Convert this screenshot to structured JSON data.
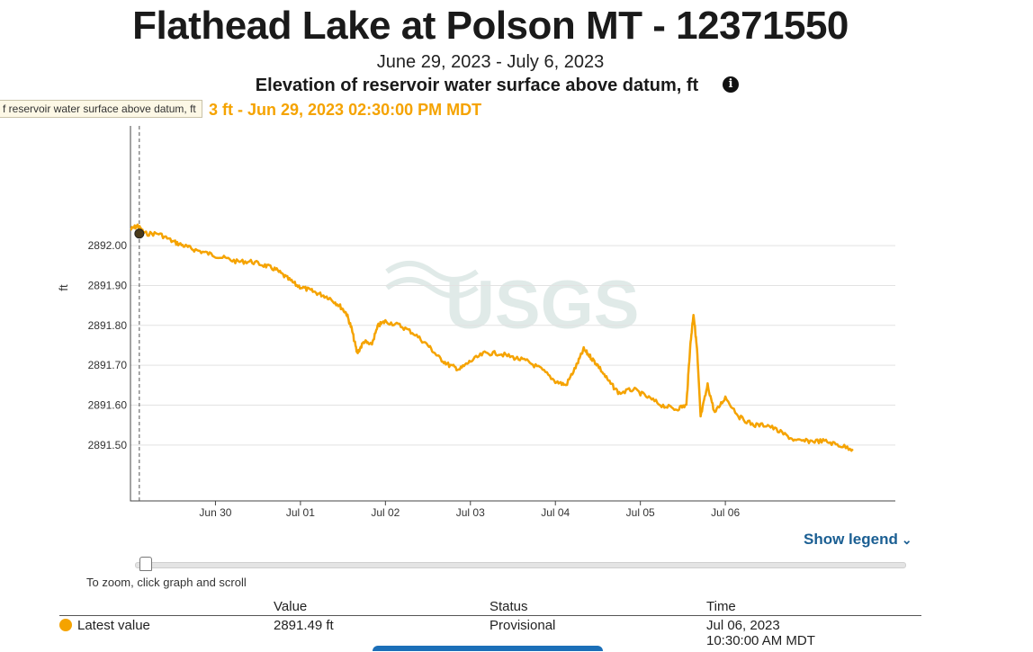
{
  "header": {
    "title": "Flathead Lake at Polson MT - 12371550",
    "date_range": "June 29, 2023 - July 6, 2023",
    "parameter": "Elevation of reservoir water surface above datum, ft",
    "info_icon": "info-icon"
  },
  "tooltip": {
    "text": "f reservoir water surface above datum, ft",
    "hover_value": "3 ft - Jun 29, 2023 02:30:00 PM MDT"
  },
  "chart_data": {
    "type": "line",
    "title": "Flathead Lake at Polson MT - 12371550",
    "ylabel": "ft",
    "xlabel": "",
    "ylim": [
      2891.36,
      2892.3
    ],
    "xlim_days_label": "Jun 29 12:00 - Jul 06 21:00",
    "grid": "horizontal",
    "y_ticks": [
      "2892.00",
      "2891.90",
      "2891.80",
      "2891.70",
      "2891.60",
      "2891.50"
    ],
    "x_ticks": [
      "Jun 30",
      "Jul 01",
      "Jul 02",
      "Jul 03",
      "Jul 04",
      "Jul 05",
      "Jul 06"
    ],
    "line_color": "#f5a300",
    "cursor_time": "Jun 29, 2023 14:30",
    "watermark": "USGS",
    "series": [
      {
        "points": [
          [
            "2023-06-29 12:00",
            2892.04
          ],
          [
            "2023-06-29 14:00",
            2892.05
          ],
          [
            "2023-06-29 16:00",
            2892.03
          ],
          [
            "2023-06-29 20:00",
            2892.03
          ],
          [
            "2023-06-30 00:00",
            2892.01
          ],
          [
            "2023-06-30 03:00",
            2892.0
          ],
          [
            "2023-06-30 06:00",
            2891.99
          ],
          [
            "2023-06-30 10:00",
            2891.98
          ],
          [
            "2023-06-30 14:00",
            2891.97
          ],
          [
            "2023-06-30 18:00",
            2891.96
          ],
          [
            "2023-06-30 22:00",
            2891.96
          ],
          [
            "2023-07-01 02:00",
            2891.95
          ],
          [
            "2023-07-01 05:00",
            2891.94
          ],
          [
            "2023-07-01 08:00",
            2891.92
          ],
          [
            "2023-07-01 11:00",
            2891.9
          ],
          [
            "2023-07-01 14:00",
            2891.89
          ],
          [
            "2023-07-01 17:00",
            2891.88
          ],
          [
            "2023-07-01 20:00",
            2891.87
          ],
          [
            "2023-07-01 23:00",
            2891.85
          ],
          [
            "2023-07-02 01:00",
            2891.83
          ],
          [
            "2023-07-02 02:30",
            2891.79
          ],
          [
            "2023-07-02 04:00",
            2891.73
          ],
          [
            "2023-07-02 06:00",
            2891.76
          ],
          [
            "2023-07-02 08:00",
            2891.75
          ],
          [
            "2023-07-02 10:00",
            2891.8
          ],
          [
            "2023-07-02 12:00",
            2891.81
          ],
          [
            "2023-07-02 16:00",
            2891.8
          ],
          [
            "2023-07-02 20:00",
            2891.78
          ],
          [
            "2023-07-03 00:00",
            2891.75
          ],
          [
            "2023-07-03 03:00",
            2891.72
          ],
          [
            "2023-07-03 06:00",
            2891.7
          ],
          [
            "2023-07-03 09:00",
            2891.69
          ],
          [
            "2023-07-03 12:00",
            2891.71
          ],
          [
            "2023-07-03 16:00",
            2891.73
          ],
          [
            "2023-07-03 20:00",
            2891.73
          ],
          [
            "2023-07-04 00:00",
            2891.72
          ],
          [
            "2023-07-04 04:00",
            2891.71
          ],
          [
            "2023-07-04 08:00",
            2891.69
          ],
          [
            "2023-07-04 12:00",
            2891.66
          ],
          [
            "2023-07-04 15:00",
            2891.65
          ],
          [
            "2023-07-04 18:00",
            2891.7
          ],
          [
            "2023-07-04 20:00",
            2891.74
          ],
          [
            "2023-07-04 22:00",
            2891.72
          ],
          [
            "2023-07-05 00:00",
            2891.7
          ],
          [
            "2023-07-05 03:00",
            2891.66
          ],
          [
            "2023-07-05 06:00",
            2891.63
          ],
          [
            "2023-07-05 10:00",
            2891.64
          ],
          [
            "2023-07-05 14:00",
            2891.62
          ],
          [
            "2023-07-05 18:00",
            2891.6
          ],
          [
            "2023-07-05 22:00",
            2891.59
          ],
          [
            "2023-07-06 01:00",
            2891.6
          ],
          [
            "2023-07-06 02:00",
            2891.74
          ],
          [
            "2023-07-06 03:00",
            2891.83
          ],
          [
            "2023-07-06 04:00",
            2891.74
          ],
          [
            "2023-07-06 05:00",
            2891.57
          ],
          [
            "2023-07-06 07:00",
            2891.65
          ],
          [
            "2023-07-06 09:00",
            2891.58
          ],
          [
            "2023-07-06 12:00",
            2891.62
          ],
          [
            "2023-07-06 16:00",
            2891.57
          ],
          [
            "2023-07-06 20:00",
            2891.55
          ],
          [
            "2023-07-07 00:00",
            2891.55
          ],
          [
            "2023-07-07 04:00",
            2891.53
          ],
          [
            "2023-07-07 08:00",
            2891.51
          ],
          [
            "2023-07-07 12:00",
            2891.51
          ],
          [
            "2023-07-07 16:00",
            2891.51
          ],
          [
            "2023-07-07 20:00",
            2891.5
          ],
          [
            "2023-07-08 00:00",
            2891.49
          ]
        ]
      }
    ]
  },
  "legend": {
    "label": "Show legend",
    "chevron_icon": "chevron-down-icon"
  },
  "zoom_hint": "To zoom, click graph and scroll",
  "table": {
    "headers": [
      "",
      "Value",
      "Status",
      "Time"
    ],
    "rows": [
      {
        "label": "Latest value",
        "value": "2891.49 ft",
        "status": "Provisional",
        "time_date": "Jul 06, 2023",
        "time_clock": "10:30:00 AM MDT"
      }
    ]
  }
}
